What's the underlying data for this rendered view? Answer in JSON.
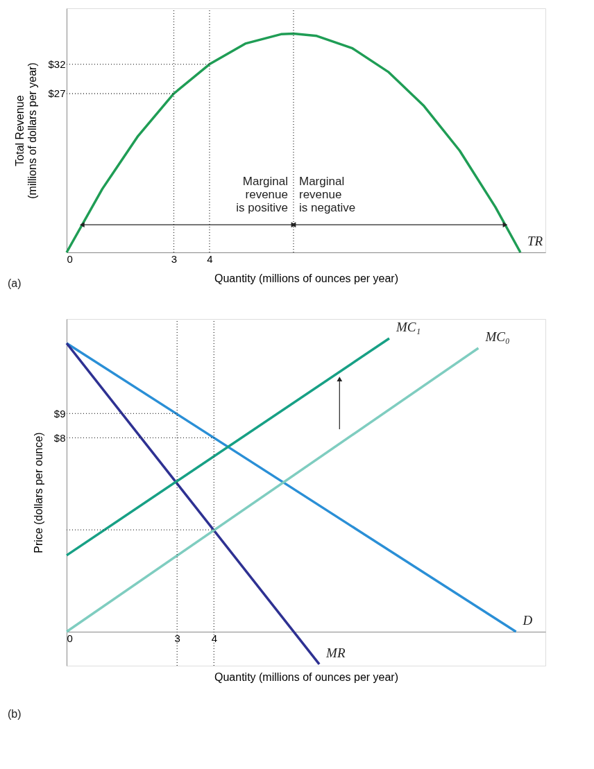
{
  "chart_data": [
    {
      "type": "line",
      "xlabel": "Quantity (millions of ounces per year)",
      "ylabel": "Total Revenue\n(millions of dollars per year)",
      "xlim": [
        0,
        13.4
      ],
      "ylim": [
        0,
        41.5
      ],
      "xticks": [
        0,
        3,
        4
      ],
      "yticks": [
        {
          "value": 27,
          "label": "$27"
        },
        {
          "value": 32,
          "label": "$32"
        }
      ],
      "grid": false,
      "legend": false,
      "marker": "none",
      "line_style": "solid",
      "series": [
        {
          "name": "TR",
          "color": "#1f9d55",
          "x": [
            0,
            1,
            2,
            3,
            4,
            5,
            6,
            6.35,
            7,
            8,
            9,
            10,
            11,
            12,
            12.7
          ],
          "values": [
            0,
            10.8,
            19.8,
            27,
            32,
            35.5,
            37.1,
            37.2,
            36.8,
            34.7,
            30.7,
            24.9,
            17.3,
            7.7,
            0
          ]
        }
      ],
      "ref_lines": [
        {
          "axis": "x",
          "value": 3,
          "line_style": "dotted",
          "color": "#333333"
        },
        {
          "axis": "x",
          "value": 4,
          "line_style": "dotted",
          "color": "#333333"
        },
        {
          "axis": "x",
          "value": 6.35,
          "line_style": "dotted",
          "color": "#333333"
        },
        {
          "axis": "y",
          "value": 27,
          "line_style": "dotted",
          "color": "#333333"
        },
        {
          "axis": "y",
          "value": 32,
          "line_style": "dotted",
          "color": "#333333"
        }
      ],
      "annotations": [
        "Marginal\nrevenue\nis positive",
        "Marginal\nrevenue\nis negative",
        "(a)"
      ]
    },
    {
      "type": "line",
      "xlabel": "Quantity (millions of ounces per year)",
      "ylabel": "Price (dollars per ounce)",
      "xlim": [
        0,
        13
      ],
      "ylim": [
        -1.4,
        12.9
      ],
      "xticks": [
        0,
        3,
        4
      ],
      "yticks": [
        {
          "value": 8,
          "label": "$8"
        },
        {
          "value": 9,
          "label": "$9"
        }
      ],
      "grid": false,
      "legend": false,
      "marker": "none",
      "line_style": "solid",
      "series": [
        {
          "name": "D",
          "color": "#2a8fd6",
          "x": [
            0,
            12.2
          ],
          "values": [
            11.9,
            0
          ]
        },
        {
          "name": "MR",
          "color": "#2e3192",
          "x": [
            0,
            6.86
          ],
          "values": [
            11.9,
            -1.34
          ]
        },
        {
          "name": "MC₁",
          "color": "#17a085",
          "x": [
            0,
            8.76
          ],
          "values": [
            3.15,
            12.1
          ]
        },
        {
          "name": "MC₀",
          "color": "#7fcdc0",
          "x": [
            0,
            11.18
          ],
          "values": [
            0,
            11.7
          ]
        }
      ],
      "ref_lines": [
        {
          "axis": "x",
          "value": 3,
          "line_style": "dotted",
          "color": "#333333"
        },
        {
          "axis": "x",
          "value": 4,
          "line_style": "dotted",
          "color": "#333333"
        },
        {
          "axis": "y",
          "value": 9,
          "line_style": "dotted",
          "color": "#333333"
        },
        {
          "axis": "y",
          "value": 8,
          "line_style": "dotted",
          "color": "#333333"
        },
        {
          "axis": "y",
          "value": 4.2,
          "line_style": "dotted",
          "color": "#333333"
        }
      ],
      "annotations": [
        "(b)"
      ]
    }
  ]
}
